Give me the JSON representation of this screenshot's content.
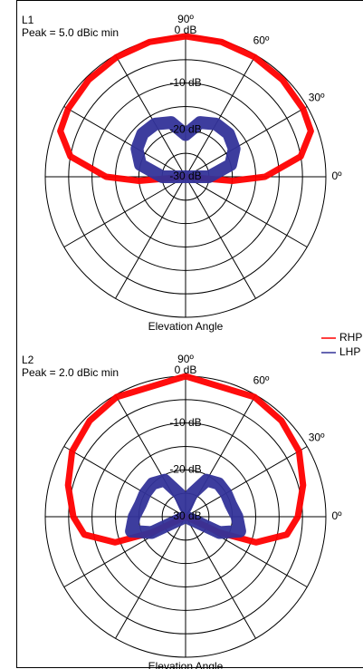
{
  "chart_data": [
    {
      "type": "polar",
      "title": "L1",
      "subtitle": "Peak = 5.0 dBic min",
      "xlabel": "Elevation Angle",
      "rlim": [
        -30,
        0
      ],
      "rticks": [
        {
          "value": 0,
          "label": "0 dB"
        },
        {
          "value": -10,
          "label": "-10 dB"
        },
        {
          "value": -20,
          "label": "-20 dB"
        },
        {
          "value": -30,
          "label": "-30 dB"
        }
      ],
      "rgrid": [
        -25,
        -20,
        -15,
        -10,
        -5,
        0
      ],
      "thetaticks": [
        {
          "value": 90,
          "label": "90º"
        },
        {
          "value": 60,
          "label": "60º"
        },
        {
          "value": 30,
          "label": "30º"
        },
        {
          "value": 0,
          "label": "0º"
        }
      ],
      "thetagrid": [
        0,
        30,
        60,
        90,
        120,
        150,
        180,
        210,
        240,
        270,
        300,
        330
      ],
      "series": [
        {
          "name": "RHP",
          "color": "#ff0000",
          "theta": [
            -10,
            -5,
            0,
            10,
            20,
            30,
            45,
            60,
            75,
            90,
            105,
            120,
            135,
            150,
            160,
            170,
            180,
            185,
            190
          ],
          "values": [
            -30,
            -20,
            -13,
            -5,
            -1.5,
            -1,
            -0.7,
            -0.5,
            -0.2,
            0,
            -0.2,
            -0.5,
            -0.7,
            -1,
            -1.5,
            -5,
            -13,
            -20,
            -30
          ]
        },
        {
          "name": "LHP",
          "color": "#333399",
          "theta": [
            -10,
            0,
            15,
            30,
            45,
            60,
            75,
            90,
            105,
            120,
            135,
            150,
            165,
            180,
            190
          ],
          "values": [
            -30,
            -25,
            -20,
            -18,
            -17,
            -17,
            -18,
            -21,
            -18,
            -17,
            -17,
            -18,
            -20,
            -25,
            -30
          ]
        }
      ]
    },
    {
      "type": "polar",
      "title": "L2",
      "subtitle": "Peak = 2.0 dBic min",
      "xlabel": "Elevation Angle",
      "rlim": [
        -30,
        0
      ],
      "rticks": [
        {
          "value": 0,
          "label": "0 dB"
        },
        {
          "value": -10,
          "label": "-10 dB"
        },
        {
          "value": -20,
          "label": "-20 dB"
        },
        {
          "value": -30,
          "label": "-30 dB"
        }
      ],
      "rgrid": [
        -25,
        -20,
        -15,
        -10,
        -5,
        0
      ],
      "thetaticks": [
        {
          "value": 90,
          "label": "90º"
        },
        {
          "value": 60,
          "label": "60º"
        },
        {
          "value": 30,
          "label": "30º"
        },
        {
          "value": 0,
          "label": "0º"
        }
      ],
      "thetagrid": [
        0,
        30,
        60,
        90,
        120,
        150,
        180,
        210,
        240,
        270,
        300,
        330
      ],
      "series": [
        {
          "name": "RHP",
          "color": "#ff0000",
          "theta": [
            -30,
            -25,
            -20,
            -10,
            0,
            15,
            30,
            45,
            60,
            90,
            120,
            135,
            150,
            165,
            180,
            190,
            200,
            205,
            210
          ],
          "values": [
            -30,
            -22,
            -14,
            -8,
            -6,
            -4,
            -2,
            -1,
            -0.5,
            0,
            -0.5,
            -1,
            -2,
            -4,
            -6,
            -8,
            -14,
            -22,
            -30
          ]
        },
        {
          "name": "LHP",
          "color": "#333399",
          "theta": [
            -35,
            -25,
            -15,
            0,
            15,
            30,
            45,
            60,
            75,
            90,
            105,
            120,
            135,
            150,
            165,
            180,
            195,
            205,
            215
          ],
          "values": [
            -30,
            -22,
            -18,
            -19,
            -20,
            -20,
            -20,
            -21,
            -25,
            -28,
            -25,
            -21,
            -20,
            -20,
            -20,
            -19,
            -18,
            -22,
            -30
          ]
        }
      ]
    }
  ]
}
